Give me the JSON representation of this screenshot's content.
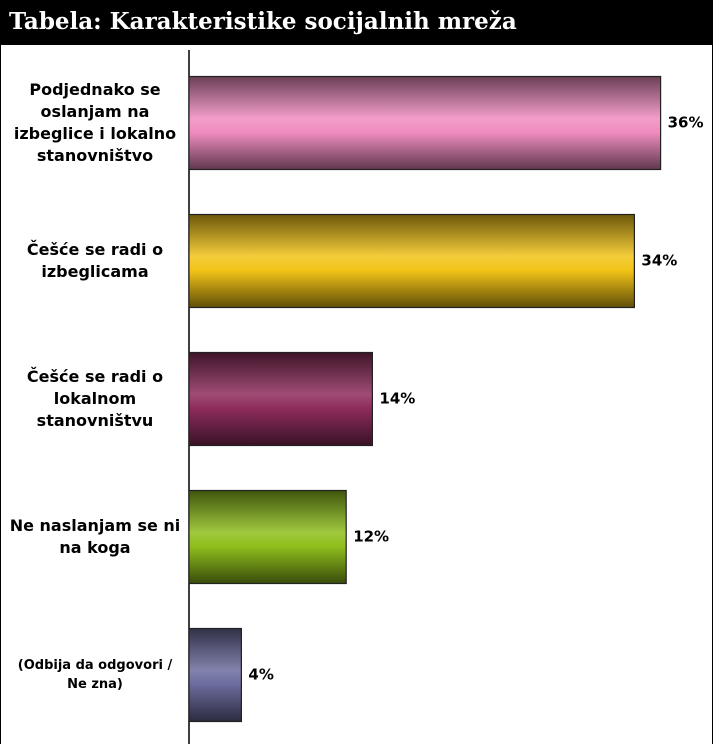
{
  "chart_data": {
    "type": "bar",
    "orientation": "horizontal",
    "title": "Tabela: Karakteristike socijalnih mreža",
    "categories": [
      "Podjednako se oslanjam na izbeglice i lokalno stanovništvo",
      "Češće se radi o izbeglicama",
      "Češće se radi o lokalnom stanovništvu",
      "Ne naslanjam se ni na koga",
      "(Odbija da odgovori / Ne zna)"
    ],
    "values": [
      36,
      34,
      14,
      12,
      4
    ],
    "value_labels": [
      "36%",
      "34%",
      "14%",
      "12%",
      "4%"
    ],
    "colors": [
      "#f08cc0",
      "#f2c417",
      "#8e2c5c",
      "#8fbe1c",
      "#6c6c9e"
    ],
    "xlim": [
      0,
      40
    ]
  }
}
